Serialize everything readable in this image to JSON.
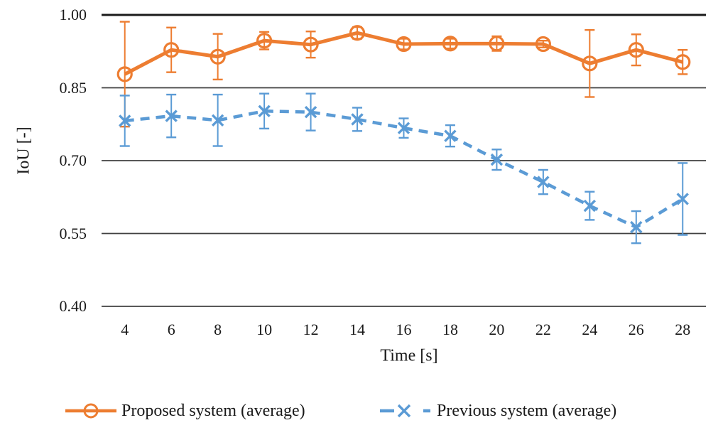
{
  "chart_data": {
    "type": "line",
    "title": "",
    "xlabel": "Time [s]",
    "ylabel": "IoU [-]",
    "x": [
      4,
      6,
      8,
      10,
      12,
      14,
      16,
      18,
      20,
      22,
      24,
      26,
      28
    ],
    "ylim": [
      0.4,
      1.0
    ],
    "yticks": [
      0.4,
      0.55,
      0.7,
      0.85,
      1.0
    ],
    "grid": "horizontal",
    "legend_position": "bottom",
    "axis_color": "#404040",
    "top_gridline_color": "#1a1a1a",
    "series": [
      {
        "name": "Proposed system (average)",
        "color": "#ED7D31",
        "line_style": "solid",
        "marker": "circle",
        "values": [
          0.878,
          0.928,
          0.914,
          0.947,
          0.939,
          0.963,
          0.94,
          0.941,
          0.941,
          0.94,
          0.9,
          0.928,
          0.903
        ],
        "error": [
          0.108,
          0.046,
          0.047,
          0.018,
          0.027,
          0.012,
          0.011,
          0.01,
          0.015,
          0.007,
          0.069,
          0.032,
          0.025
        ]
      },
      {
        "name": "Previous system (average)",
        "color": "#5B9BD5",
        "line_style": "dashed",
        "marker": "x",
        "values": [
          0.782,
          0.792,
          0.783,
          0.802,
          0.8,
          0.785,
          0.767,
          0.751,
          0.702,
          0.656,
          0.607,
          0.563,
          0.621
        ],
        "error": [
          0.052,
          0.044,
          0.053,
          0.036,
          0.038,
          0.024,
          0.02,
          0.022,
          0.021,
          0.025,
          0.029,
          0.033,
          0.074
        ]
      }
    ]
  }
}
